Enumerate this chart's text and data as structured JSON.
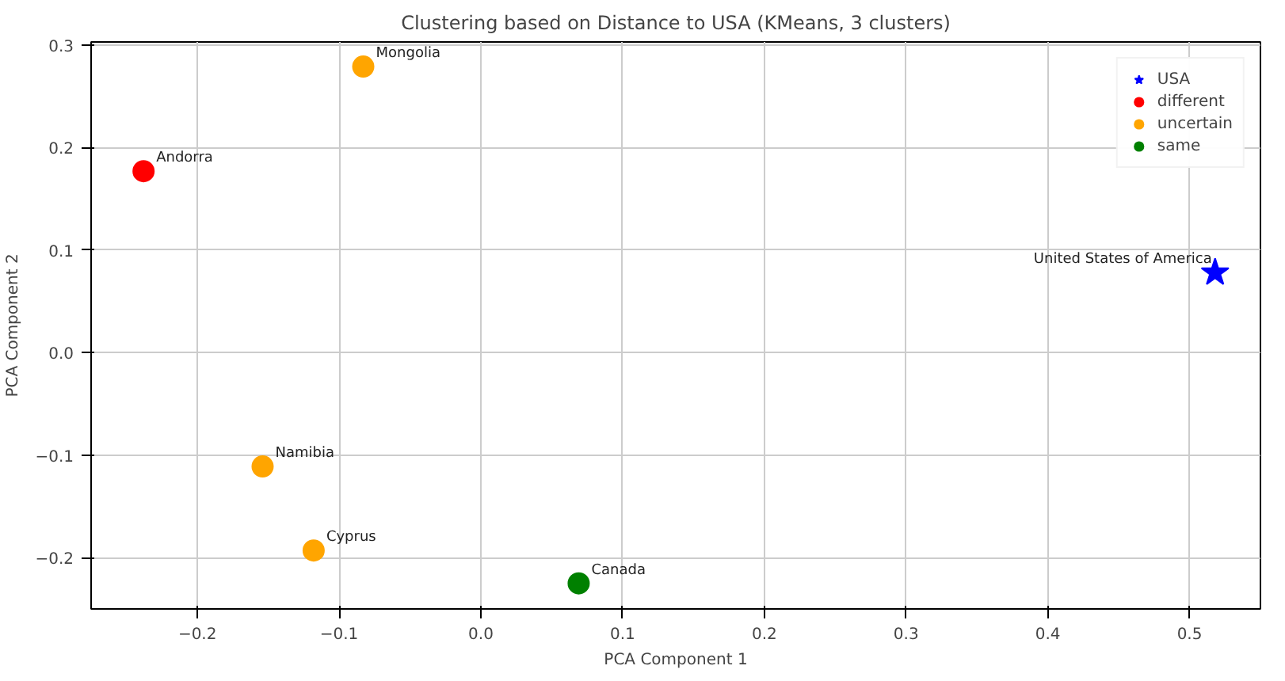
{
  "chart_data": {
    "type": "scatter",
    "title": "Clustering based on Distance to USA (KMeans, 3 clusters)",
    "xlabel": "PCA Component 1",
    "ylabel": "PCA Component 2",
    "series": [
      {
        "name": "USA",
        "color": "#0000ff",
        "marker": "star",
        "x": [
          0.518
        ],
        "values": [
          0.078
        ]
      },
      {
        "name": "different",
        "color": "#ff0000",
        "marker": "circle",
        "x": [
          -0.238
        ],
        "values": [
          0.177
        ]
      },
      {
        "name": "uncertain",
        "color": "#ffa500",
        "marker": "circle",
        "x": [
          -0.083,
          -0.154,
          -0.118
        ],
        "values": [
          0.279,
          -0.111,
          -0.193
        ]
      },
      {
        "name": "same",
        "color": "#008000",
        "marker": "circle",
        "x": [
          0.069
        ],
        "values": [
          -0.225
        ]
      }
    ],
    "annotations": [
      {
        "text": "United States of America",
        "x": 0.518,
        "y": 0.078
      },
      {
        "text": "Andorra",
        "x": -0.238,
        "y": 0.177
      },
      {
        "text": "Mongolia",
        "x": -0.083,
        "y": 0.279
      },
      {
        "text": "Namibia",
        "x": -0.154,
        "y": -0.111
      },
      {
        "text": "Cyprus",
        "x": -0.118,
        "y": -0.193
      },
      {
        "text": "Canada",
        "x": 0.069,
        "y": -0.225
      }
    ],
    "xlim": [
      -0.275,
      0.55
    ],
    "ylim": [
      -0.25,
      0.303
    ],
    "xticks": [
      {
        "value": -0.2,
        "label": "−0.2"
      },
      {
        "value": -0.1,
        "label": "−0.1"
      },
      {
        "value": 0,
        "label": "0.0"
      },
      0.1,
      0.2,
      0.3,
      0.4,
      0.5
    ],
    "yticks": [
      {
        "value": -0.2,
        "label": "−0.2"
      },
      {
        "value": -0.1,
        "label": "−0.1"
      },
      {
        "value": 0,
        "label": "0.0"
      },
      0.1,
      0.2,
      0.3
    ],
    "grid": true,
    "legend": "top right"
  }
}
